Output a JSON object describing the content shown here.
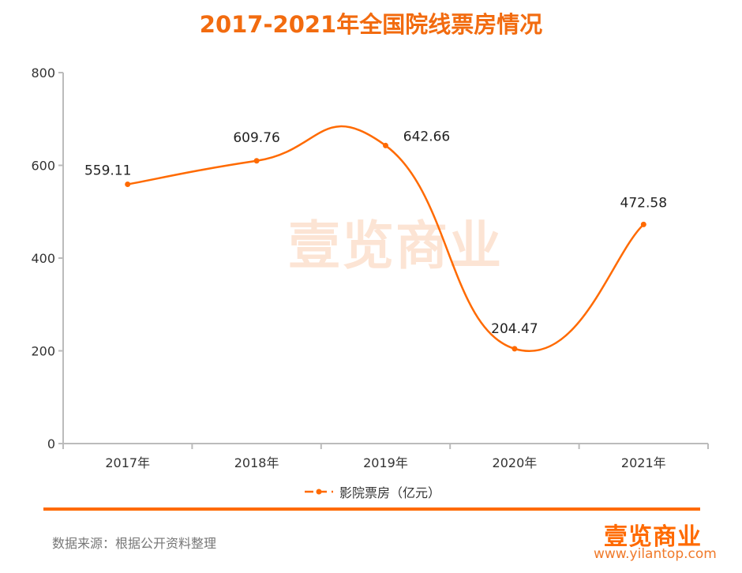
{
  "chart_data": {
    "type": "line",
    "title": "2017-2021年全国院线票房情况",
    "categories": [
      "2017年",
      "2018年",
      "2019年",
      "2020年",
      "2021年"
    ],
    "series": [
      {
        "name": "影院票房（亿元）",
        "values": [
          559.11,
          609.76,
          642.66,
          204.47,
          472.58
        ],
        "color": "#ff6a00"
      }
    ],
    "ylim": [
      0,
      800
    ],
    "yticks": [
      0,
      200,
      400,
      600,
      800
    ],
    "smooth": true,
    "grid": false,
    "legend": "bottom"
  },
  "source": "数据来源：根据公开资料整理",
  "logo": "壹览商业",
  "url": "www.yilantop.com",
  "watermark": "壹览商业"
}
